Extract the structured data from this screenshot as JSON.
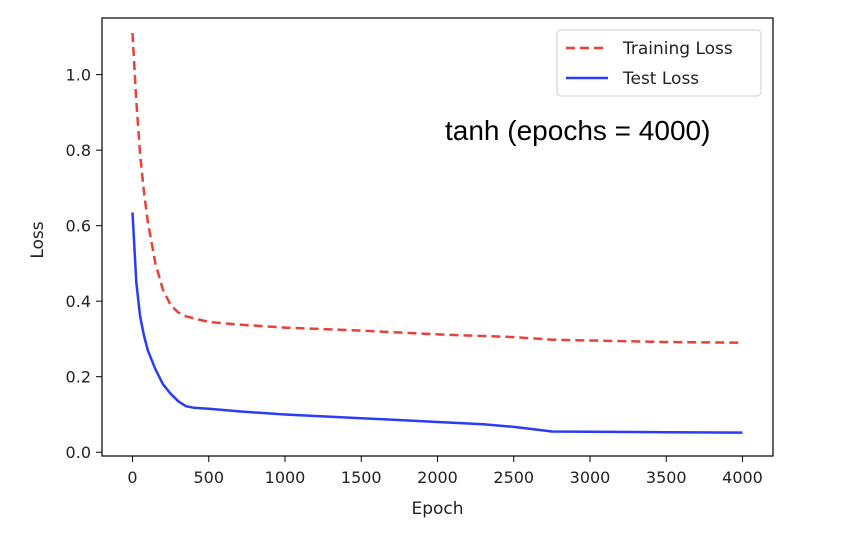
{
  "chart_data": {
    "type": "line",
    "xlabel": "Epoch",
    "ylabel": "Loss",
    "xlim": [
      -200,
      4200
    ],
    "ylim": [
      -0.01,
      1.15
    ],
    "xticks": [
      0,
      500,
      1000,
      1500,
      2000,
      2500,
      3000,
      3500,
      4000
    ],
    "yticks": [
      0.0,
      0.2,
      0.4,
      0.6,
      0.8,
      1.0
    ],
    "xtick_labels": [
      "0",
      "500",
      "1000",
      "1500",
      "2000",
      "2500",
      "3000",
      "3500",
      "4000"
    ],
    "ytick_labels": [
      "0.0",
      "0.2",
      "0.4",
      "0.6",
      "0.8",
      "1.0"
    ],
    "grid": false,
    "legend_position": "top-right",
    "annotation": "tanh (epochs = 4000)",
    "series": [
      {
        "name": "Training Loss",
        "color": "#e8413a",
        "style": "dashed",
        "x": [
          0,
          25,
          50,
          75,
          100,
          150,
          200,
          250,
          300,
          350,
          400,
          500,
          700,
          1000,
          1500,
          2000,
          2500,
          2750,
          3000,
          3500,
          4000
        ],
        "y": [
          1.11,
          0.93,
          0.79,
          0.69,
          0.61,
          0.5,
          0.43,
          0.39,
          0.37,
          0.36,
          0.355,
          0.345,
          0.338,
          0.33,
          0.322,
          0.312,
          0.305,
          0.298,
          0.296,
          0.292,
          0.29
        ]
      },
      {
        "name": "Test Loss",
        "color": "#2a3cf5",
        "style": "solid",
        "x": [
          0,
          25,
          50,
          75,
          100,
          150,
          200,
          250,
          300,
          350,
          400,
          500,
          700,
          1000,
          1500,
          2000,
          2300,
          2500,
          2650,
          2750,
          3000,
          3500,
          4000
        ],
        "y": [
          0.635,
          0.45,
          0.36,
          0.31,
          0.27,
          0.22,
          0.18,
          0.155,
          0.135,
          0.122,
          0.118,
          0.115,
          0.108,
          0.1,
          0.09,
          0.08,
          0.074,
          0.067,
          0.06,
          0.055,
          0.054,
          0.053,
          0.052
        ]
      }
    ]
  }
}
